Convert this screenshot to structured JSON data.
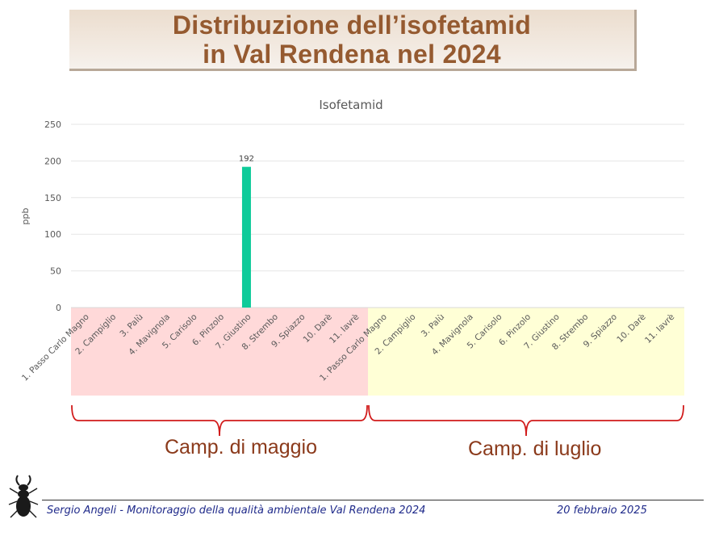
{
  "slide": {
    "title_line1": "Distribuzione dell’isofetamid",
    "title_line2": "in Val Rendena nel 2024"
  },
  "groups": [
    {
      "label": "Camp. di maggio",
      "color": "#ffd9d9"
    },
    {
      "label": "Camp. di luglio",
      "color": "#ffffd6"
    }
  ],
  "footer": {
    "text": "Sergio Angeli - Monitoraggio della qualità ambientale Val Rendena 2024",
    "date": "20 febbraio 2025"
  },
  "logo": {
    "icon": "stag-beetle-icon"
  },
  "chart_data": {
    "type": "bar",
    "title": "Isofetamid",
    "ylabel": "ppb",
    "xlabel": "",
    "ylim": [
      0,
      250
    ],
    "yticks": [
      0,
      50,
      100,
      150,
      200,
      250
    ],
    "grid": true,
    "bar_color": "#0ecb9a",
    "brace_color": "#d11a1a",
    "categories": [
      "1. Passo Carlo Magno",
      "2. Campiglio",
      "3. Palù",
      "4. Mavignola",
      "5. Carisolo",
      "6. Pinzolo",
      "7. Giustino",
      "8. Strembo",
      "9. Spiazzo",
      "10. Darè",
      "11. Iavrè",
      "1. Passo Carlo Magno",
      "2. Campiglio",
      "3. Palù",
      "4. Mavignola",
      "5. Carisolo",
      "6. Pinzolo",
      "7. Giustino",
      "8. Strembo",
      "9. Spiazzo",
      "10. Darè",
      "11. Iavrè"
    ],
    "values": [
      0,
      0,
      0,
      0,
      0,
      0,
      192,
      0,
      0,
      0,
      0,
      0,
      0,
      0,
      0,
      0,
      0,
      0,
      0,
      0,
      0,
      0
    ],
    "data_labels": [
      "",
      "",
      "",
      "",
      "",
      "",
      "192",
      "",
      "",
      "",
      "",
      "",
      "",
      "",
      "",
      "",
      "",
      "",
      "",
      "",
      "",
      ""
    ]
  }
}
